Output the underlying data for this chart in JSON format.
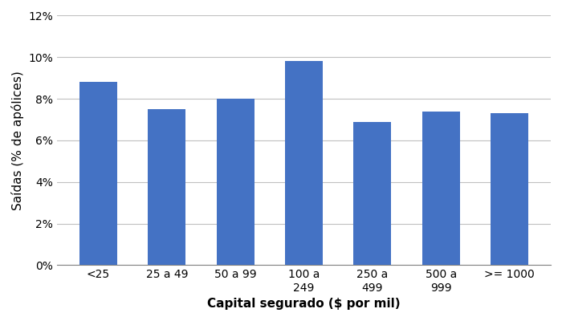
{
  "categories": [
    "<25",
    "25 a 49",
    "50 a 99",
    "100 a\n249",
    "250 a\n499",
    "500 a\n999",
    ">= 1000"
  ],
  "values": [
    0.088,
    0.075,
    0.08,
    0.098,
    0.069,
    0.074,
    0.073
  ],
  "bar_color": "#4472C4",
  "ylabel": "Saídas (% de apólices)",
  "xlabel": "Capital segurado ($ por mil)",
  "ylim": [
    0,
    0.12
  ],
  "yticks": [
    0.0,
    0.02,
    0.04,
    0.06,
    0.08,
    0.1,
    0.12
  ],
  "ytick_labels": [
    "0%",
    "2%",
    "4%",
    "6%",
    "8%",
    "10%",
    "12%"
  ],
  "background_color": "#ffffff",
  "grid_color": "#c0c0c0",
  "bar_width": 0.55,
  "xlabel_fontsize": 11,
  "ylabel_fontsize": 11
}
